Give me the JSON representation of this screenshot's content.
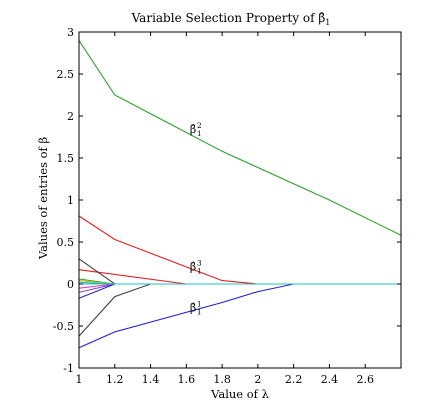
{
  "chart_data": {
    "type": "line",
    "title_prefix": "Variable Selection Property of ",
    "title_symbol": "β̂",
    "title_sub": "1",
    "xlabel": "Value of λ",
    "ylabel": "Values of entries of β",
    "xlim": [
      1,
      2.8
    ],
    "ylim": [
      -1,
      3
    ],
    "xticks": [
      "1",
      "1.2",
      "1.4",
      "1.6",
      "1.8",
      "2",
      "2.2",
      "2.4",
      "2.6"
    ],
    "yticks": [
      "-1",
      "-0.5",
      "0",
      "0.5",
      "1",
      "1.5",
      "2",
      "2.5",
      "3"
    ],
    "grid": false,
    "annotations": [
      {
        "symbol": "β̂",
        "sub": "1",
        "sup": "2",
        "x": 1.62,
        "y": 1.8
      },
      {
        "symbol": "β̂",
        "sub": "1",
        "sup": "3",
        "x": 1.62,
        "y": 0.16
      },
      {
        "symbol": "β̂",
        "sub": "1",
        "sup": "1",
        "x": 1.62,
        "y": -0.33
      }
    ],
    "series": [
      {
        "color": "#2ca02c",
        "x": [
          1.0,
          1.2,
          1.8,
          2.4,
          2.8
        ],
        "y": [
          2.9,
          2.25,
          1.58,
          1.0,
          0.58
        ]
      },
      {
        "color": "#e02020",
        "x": [
          1.0,
          1.2,
          1.8,
          2.0,
          2.8
        ],
        "y": [
          0.81,
          0.53,
          0.04,
          0.0,
          0.0
        ]
      },
      {
        "color": "#e02020",
        "x": [
          1.0,
          1.6,
          2.0,
          2.8
        ],
        "y": [
          0.17,
          0.0,
          0.0,
          0.0
        ]
      },
      {
        "color": "#2020d0",
        "x": [
          1.0,
          1.2,
          1.8,
          2.0,
          2.2,
          2.8
        ],
        "y": [
          -0.76,
          -0.57,
          -0.22,
          -0.09,
          0.0,
          0.0
        ]
      },
      {
        "color": "#404040",
        "x": [
          1.0,
          1.2,
          1.4,
          2.8
        ],
        "y": [
          0.3,
          0.0,
          0.0,
          0.0
        ]
      },
      {
        "color": "#404040",
        "x": [
          1.0,
          1.2,
          1.4,
          2.8
        ],
        "y": [
          -0.62,
          -0.15,
          0.0,
          0.0
        ]
      },
      {
        "color": "#2ca02c",
        "x": [
          1.0,
          1.2,
          2.8
        ],
        "y": [
          0.06,
          0.0,
          0.0
        ]
      },
      {
        "color": "#c0c020",
        "x": [
          1.0,
          1.2,
          2.8
        ],
        "y": [
          0.04,
          0.0,
          0.0
        ]
      },
      {
        "color": "#20c0c0",
        "x": [
          1.0,
          1.2,
          2.8
        ],
        "y": [
          0.02,
          0.0,
          0.0
        ]
      },
      {
        "color": "#d040d0",
        "x": [
          1.0,
          1.2,
          2.8
        ],
        "y": [
          -0.05,
          0.0,
          0.0
        ]
      },
      {
        "color": "#8040d0",
        "x": [
          1.0,
          1.2,
          2.8
        ],
        "y": [
          -0.1,
          0.0,
          0.0
        ]
      },
      {
        "color": "#2020d0",
        "x": [
          1.0,
          1.2,
          2.8
        ],
        "y": [
          -0.17,
          0.0,
          0.0
        ]
      },
      {
        "color": "#20c0c0",
        "x": [
          1.0,
          2.8
        ],
        "y": [
          0.0,
          0.0
        ]
      }
    ]
  }
}
